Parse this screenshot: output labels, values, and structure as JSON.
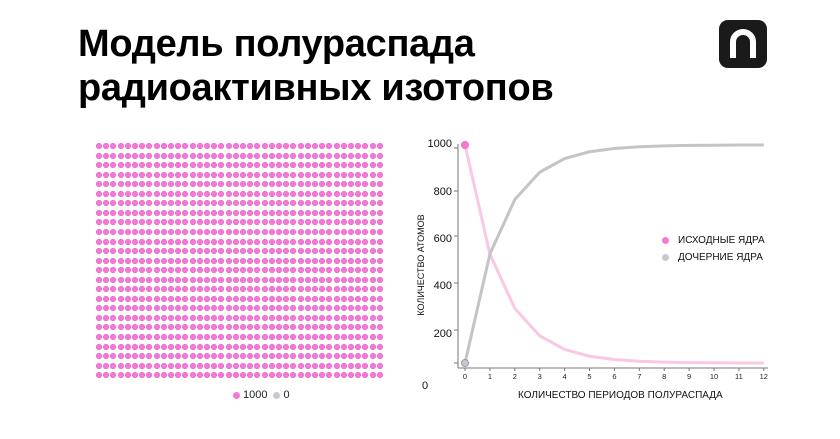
{
  "header": {
    "title_line1": "Модель полураспада",
    "title_line2": "радиоактивных изотопов",
    "logo_icon": "arch-n-logo-icon"
  },
  "atom_grid": {
    "columns": 40,
    "rows": 25,
    "total": 1000,
    "parent_count_label": "1000",
    "daughter_count_label": "0",
    "parent_color": "#f57ad7",
    "daughter_color": "#c8c8d0"
  },
  "chart_data": {
    "type": "line",
    "title": "",
    "xlabel": "КОЛИЧЕСТВО ПЕРИОДОВ ПОЛУРАСПАДА",
    "ylabel": "КОЛИЧЕСТВО АТОМОВ",
    "x": [
      0,
      1,
      2,
      3,
      4,
      5,
      6,
      7,
      8,
      9,
      10,
      11,
      12
    ],
    "x_ticks": [
      "0",
      "1",
      "2",
      "3",
      "4",
      "5",
      "6",
      "7",
      "8",
      "9",
      "10",
      "11",
      "12"
    ],
    "y_ticks": [
      "1000",
      "800",
      "600",
      "400",
      "200",
      "0"
    ],
    "ylim": [
      0,
      1000
    ],
    "xlim": [
      0,
      12
    ],
    "grid": false,
    "legend_position": "right",
    "series": [
      {
        "name": "ИСХОДНЫЕ ЯДРА",
        "color": "#f8c8e4",
        "marker_color": "#f57ad7",
        "values": [
          1000,
          500,
          250,
          125,
          62,
          31,
          16,
          8,
          4,
          2,
          1,
          0,
          0
        ]
      },
      {
        "name": "ДОЧЕРНИЕ ЯДРА",
        "color": "#c4c4c4",
        "marker_color": "#c8c8d0",
        "values": [
          0,
          500,
          750,
          875,
          938,
          969,
          984,
          992,
          996,
          998,
          999,
          1000,
          1000
        ]
      }
    ]
  }
}
